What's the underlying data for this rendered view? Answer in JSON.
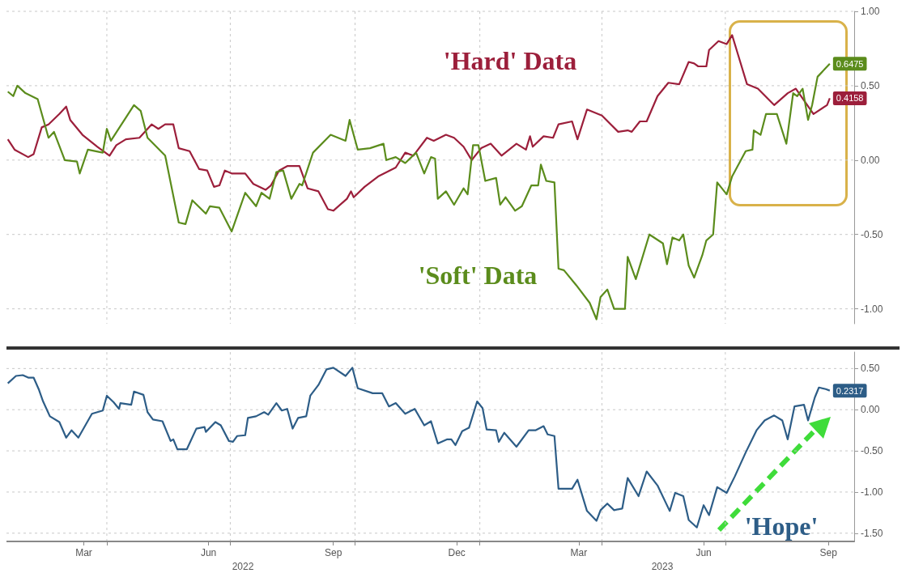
{
  "chart_data": [
    {
      "type": "line",
      "xlim": [
        "2022-01-17",
        "2023-10-04"
      ],
      "ylim": [
        -1.1,
        1.0
      ],
      "xticks": [
        {
          "value": "2022-04-01",
          "label": null
        },
        {
          "value": "2022-07-01",
          "label": null
        },
        {
          "value": "2022-10-01",
          "label": null
        },
        {
          "value": "2023-01-01",
          "label": null
        },
        {
          "value": "2023-04-01",
          "label": null
        },
        {
          "value": "2023-07-01",
          "label": null
        }
      ],
      "yticks": [
        {
          "value": -1,
          "label": "-1.00"
        },
        {
          "value": -0.5,
          "label": "-0.50"
        },
        {
          "value": 0,
          "label": "0.00"
        },
        {
          "value": 0.5,
          "label": "0.50"
        },
        {
          "value": 1,
          "label": "1.00"
        }
      ],
      "tick_labels": "y",
      "grid": true,
      "legend": false,
      "series": [
        {
          "name": "'Hard' Data",
          "color": "#9c1f3b",
          "x": [
            "2022-01-18",
            "2022-01-23",
            "2022-02-02",
            "2022-02-06",
            "2022-02-12",
            "2022-02-17",
            "2022-02-25",
            "2022-03-02",
            "2022-03-05",
            "2022-03-14",
            "2022-03-25",
            "2022-04-03",
            "2022-04-08",
            "2022-04-15",
            "2022-04-25",
            "2022-05-04",
            "2022-05-09",
            "2022-05-14",
            "2022-05-20",
            "2022-05-24",
            "2022-06-01",
            "2022-06-08",
            "2022-06-14",
            "2022-06-19",
            "2022-06-23",
            "2022-06-27",
            "2022-07-02",
            "2022-07-12",
            "2022-07-18",
            "2022-07-27",
            "2022-07-31",
            "2022-08-06",
            "2022-08-12",
            "2022-08-21",
            "2022-08-27",
            "2022-09-04",
            "2022-09-11",
            "2022-09-15",
            "2022-09-25",
            "2022-09-28",
            "2022-09-30",
            "2022-10-08",
            "2022-10-18",
            "2022-10-31",
            "2022-11-07",
            "2022-11-13",
            "2022-11-23",
            "2022-11-28",
            "2022-12-07",
            "2022-12-13",
            "2022-12-20",
            "2022-12-26",
            "2023-01-02",
            "2023-01-09",
            "2023-01-17",
            "2023-01-28",
            "2023-02-04",
            "2023-02-07",
            "2023-02-09",
            "2023-02-17",
            "2023-02-24",
            "2023-02-28",
            "2023-03-10",
            "2023-03-14",
            "2023-03-21",
            "2023-04-01",
            "2023-04-13",
            "2023-04-20",
            "2023-04-23",
            "2023-04-29",
            "2023-05-04",
            "2023-05-12",
            "2023-05-20",
            "2023-05-28",
            "2023-06-04",
            "2023-06-08",
            "2023-06-11",
            "2023-06-17",
            "2023-06-19",
            "2023-06-26",
            "2023-07-02",
            "2023-07-06",
            "2023-07-10",
            "2023-07-17",
            "2023-07-25",
            "2023-08-06",
            "2023-08-16",
            "2023-08-22",
            "2023-09-04",
            "2023-09-14",
            "2023-09-16"
          ],
          "values": [
            0.14,
            0.07,
            0.02,
            0.04,
            0.22,
            0.24,
            0.31,
            0.36,
            0.27,
            0.17,
            0.09,
            0.03,
            0.1,
            0.14,
            0.15,
            0.24,
            0.21,
            0.24,
            0.24,
            0.08,
            0.06,
            -0.06,
            -0.07,
            -0.18,
            -0.17,
            -0.07,
            -0.09,
            -0.09,
            -0.16,
            -0.2,
            -0.17,
            -0.07,
            -0.04,
            -0.04,
            -0.19,
            -0.21,
            -0.33,
            -0.34,
            -0.26,
            -0.21,
            -0.25,
            -0.18,
            -0.11,
            -0.05,
            0.05,
            0.03,
            0.15,
            0.13,
            0.17,
            0.15,
            0.09,
            0.0,
            0.08,
            0.11,
            0.03,
            0.11,
            0.07,
            0.16,
            0.09,
            0.16,
            0.15,
            0.24,
            0.26,
            0.14,
            0.34,
            0.3,
            0.19,
            0.2,
            0.19,
            0.26,
            0.26,
            0.43,
            0.52,
            0.51,
            0.66,
            0.65,
            0.63,
            0.63,
            0.74,
            0.8,
            0.78,
            0.84,
            0.72,
            0.51,
            0.48,
            0.37,
            0.45,
            0.48,
            0.31,
            0.37,
            0.4158
          ],
          "value_labels": [
            null,
            null,
            null,
            null,
            null,
            null,
            null,
            null,
            null,
            null,
            null,
            null,
            null,
            null,
            null,
            null,
            null,
            null,
            null,
            null,
            null,
            null,
            null,
            null,
            null,
            null,
            null,
            null,
            null,
            null,
            null,
            null,
            null,
            null,
            null,
            null,
            null,
            null,
            null,
            null,
            null,
            null,
            null,
            null,
            null,
            null,
            null,
            null,
            null,
            null,
            null,
            null,
            null,
            null,
            null,
            null,
            null,
            null,
            null,
            null,
            null,
            null,
            null,
            null,
            null,
            null,
            null,
            null,
            null,
            null,
            null,
            null,
            null,
            null,
            null,
            null,
            null,
            null,
            null,
            null,
            null,
            null,
            null,
            null,
            null,
            null,
            null,
            null,
            null,
            null,
            "0.4158"
          ]
        },
        {
          "name": "'Soft' Data",
          "color": "#5b8c1c",
          "x": [
            "2022-01-18",
            "2022-01-22",
            "2022-01-25",
            "2022-01-31",
            "2022-02-09",
            "2022-02-17",
            "2022-02-21",
            "2022-03-01",
            "2022-03-10",
            "2022-03-12",
            "2022-03-18",
            "2022-03-29",
            "2022-04-01",
            "2022-04-04",
            "2022-04-21",
            "2022-04-26",
            "2022-05-01",
            "2022-05-14",
            "2022-05-24",
            "2022-05-29",
            "2022-06-03",
            "2022-06-13",
            "2022-06-16",
            "2022-06-23",
            "2022-07-02",
            "2022-07-12",
            "2022-07-20",
            "2022-07-24",
            "2022-07-30",
            "2022-08-04",
            "2022-08-09",
            "2022-08-15",
            "2022-08-21",
            "2022-08-23",
            "2022-08-31",
            "2022-09-13",
            "2022-09-24",
            "2022-09-27",
            "2022-10-03",
            "2022-10-12",
            "2022-10-22",
            "2022-10-24",
            "2022-10-31",
            "2022-11-07",
            "2022-11-15",
            "2022-11-21",
            "2022-11-26",
            "2022-11-29",
            "2022-12-01",
            "2022-12-07",
            "2022-12-13",
            "2022-12-20",
            "2022-12-23",
            "2022-12-27",
            "2022-12-31",
            "2023-01-05",
            "2023-01-13",
            "2023-01-16",
            "2023-01-20",
            "2023-01-27",
            "2023-02-01",
            "2023-02-08",
            "2023-02-13",
            "2023-02-15",
            "2023-02-19",
            "2023-02-25",
            "2023-02-28",
            "2023-03-04",
            "2023-03-13",
            "2023-03-23",
            "2023-03-28",
            "2023-03-31",
            "2023-04-05",
            "2023-04-10",
            "2023-04-18",
            "2023-04-20",
            "2023-04-26",
            "2023-05-06",
            "2023-05-16",
            "2023-05-19",
            "2023-05-23",
            "2023-05-28",
            "2023-05-31",
            "2023-06-04",
            "2023-06-08",
            "2023-06-14",
            "2023-06-17",
            "2023-06-22",
            "2023-06-25",
            "2023-07-02",
            "2023-07-06",
            "2023-07-16",
            "2023-07-21",
            "2023-07-22",
            "2023-07-27",
            "2023-07-31",
            "2023-08-08",
            "2023-08-15",
            "2023-08-20",
            "2023-08-23",
            "2023-08-27",
            "2023-08-31",
            "2023-09-03",
            "2023-09-07",
            "2023-09-16"
          ],
          "values": [
            0.46,
            0.43,
            0.5,
            0.45,
            0.41,
            0.15,
            0.19,
            0.0,
            -0.01,
            -0.09,
            0.07,
            0.05,
            0.21,
            0.13,
            0.37,
            0.33,
            0.15,
            0.03,
            -0.42,
            -0.43,
            -0.27,
            -0.36,
            -0.31,
            -0.32,
            -0.48,
            -0.22,
            -0.31,
            -0.22,
            -0.26,
            -0.08,
            -0.07,
            -0.26,
            -0.16,
            -0.17,
            0.05,
            0.17,
            0.13,
            0.27,
            0.07,
            0.08,
            0.11,
            0.0,
            0.02,
            -0.02,
            0.05,
            -0.09,
            0.02,
            0.01,
            -0.26,
            -0.21,
            -0.3,
            -0.19,
            -0.23,
            0.1,
            0.1,
            -0.14,
            -0.12,
            -0.3,
            -0.25,
            -0.34,
            -0.31,
            -0.17,
            -0.17,
            -0.03,
            -0.14,
            -0.15,
            -0.73,
            -0.74,
            -0.84,
            -0.96,
            -1.07,
            -0.92,
            -0.87,
            -1.0,
            -1.0,
            -0.65,
            -0.8,
            -0.5,
            -0.56,
            -0.7,
            -0.52,
            -0.54,
            -0.5,
            -0.71,
            -0.79,
            -0.64,
            -0.54,
            -0.5,
            -0.15,
            -0.23,
            -0.11,
            0.06,
            0.07,
            0.2,
            0.17,
            0.31,
            0.31,
            0.11,
            0.45,
            0.43,
            0.48,
            0.27,
            0.37,
            0.56,
            0.6475
          ],
          "value_labels": [
            null,
            null,
            null,
            null,
            null,
            null,
            null,
            null,
            null,
            null,
            null,
            null,
            null,
            null,
            null,
            null,
            null,
            null,
            null,
            null,
            null,
            null,
            null,
            null,
            null,
            null,
            null,
            null,
            null,
            null,
            null,
            null,
            null,
            null,
            null,
            null,
            null,
            null,
            null,
            null,
            null,
            null,
            null,
            null,
            null,
            null,
            null,
            null,
            null,
            null,
            null,
            null,
            null,
            null,
            null,
            null,
            null,
            null,
            null,
            null,
            null,
            null,
            null,
            null,
            null,
            null,
            null,
            null,
            null,
            null,
            null,
            null,
            null,
            null,
            null,
            null,
            null,
            null,
            null,
            null,
            null,
            null,
            null,
            null,
            null,
            null,
            null,
            null,
            null,
            null,
            null,
            null,
            null,
            null,
            null,
            null,
            null,
            null,
            null,
            null,
            null,
            null,
            null,
            null,
            "0.6475"
          ]
        }
      ]
    },
    {
      "type": "line",
      "xlim": [
        "2022-01-17",
        "2023-10-04"
      ],
      "ylim": [
        -1.6,
        0.7
      ],
      "xticks": [
        {
          "value": "2022-03-15",
          "label": "Mar"
        },
        {
          "value": "2022-04-01",
          "label": null
        },
        {
          "value": "2022-06-15",
          "label": "Jun"
        },
        {
          "value": "2022-07-01",
          "label": null
        },
        {
          "value": "2022-09-15",
          "label": "Sep"
        },
        {
          "value": "2022-10-01",
          "label": null
        },
        {
          "value": "2022-12-15",
          "label": "Dec"
        },
        {
          "value": "2023-01-01",
          "label": null
        },
        {
          "value": "2023-03-15",
          "label": "Mar"
        },
        {
          "value": "2023-04-01",
          "label": null
        },
        {
          "value": "2023-06-15",
          "label": "Jun"
        },
        {
          "value": "2023-07-01",
          "label": null
        },
        {
          "value": "2023-09-15",
          "label": "Sep"
        }
      ],
      "yticks": [
        {
          "value": -1.5,
          "label": "-1.50"
        },
        {
          "value": -1,
          "label": "-1.00"
        },
        {
          "value": -0.5,
          "label": "-0.50"
        },
        {
          "value": 0,
          "label": "0.00"
        },
        {
          "value": 0.5,
          "label": "0.50"
        }
      ],
      "grid": true,
      "legend": false,
      "annotations": [
        "2022",
        "2023"
      ],
      "series": [
        {
          "name": "'Hope'",
          "color": "#2d5d87",
          "x": [
            "2022-01-18",
            "2022-01-24",
            "2022-01-29",
            "2022-02-02",
            "2022-02-06",
            "2022-02-10",
            "2022-02-13",
            "2022-02-18",
            "2022-02-25",
            "2022-03-02",
            "2022-03-06",
            "2022-03-11",
            "2022-03-21",
            "2022-03-29",
            "2022-04-01",
            "2022-04-06",
            "2022-04-10",
            "2022-04-11",
            "2022-04-19",
            "2022-04-21",
            "2022-04-28",
            "2022-05-01",
            "2022-05-05",
            "2022-05-12",
            "2022-05-18",
            "2022-05-20",
            "2022-05-23",
            "2022-05-30",
            "2022-06-06",
            "2022-06-12",
            "2022-06-13",
            "2022-06-20",
            "2022-06-24",
            "2022-06-30",
            "2022-07-03",
            "2022-07-06",
            "2022-07-12",
            "2022-07-14",
            "2022-07-20",
            "2022-07-26",
            "2022-07-29",
            "2022-08-04",
            "2022-08-08",
            "2022-08-12",
            "2022-08-16",
            "2022-08-20",
            "2022-08-26",
            "2022-08-29",
            "2022-09-04",
            "2022-09-10",
            "2022-09-15",
            "2022-09-24",
            "2022-09-29",
            "2022-10-03",
            "2022-10-14",
            "2022-10-21",
            "2022-10-26",
            "2022-10-31",
            "2022-11-07",
            "2022-11-14",
            "2022-11-21",
            "2022-11-26",
            "2022-12-01",
            "2022-12-08",
            "2022-12-11",
            "2022-12-14",
            "2022-12-19",
            "2022-12-24",
            "2022-12-30",
            "2023-01-03",
            "2023-01-06",
            "2023-01-13",
            "2023-01-15",
            "2023-01-19",
            "2023-01-28",
            "2023-02-06",
            "2023-02-11",
            "2023-02-17",
            "2023-02-20",
            "2023-02-25",
            "2023-02-28",
            "2023-03-10",
            "2023-03-14",
            "2023-03-21",
            "2023-03-28",
            "2023-03-31",
            "2023-04-05",
            "2023-04-10",
            "2023-04-16",
            "2023-04-20",
            "2023-04-28",
            "2023-05-04",
            "2023-05-12",
            "2023-05-21",
            "2023-05-25",
            "2023-05-31",
            "2023-06-04",
            "2023-06-10",
            "2023-06-15",
            "2023-06-19",
            "2023-06-25",
            "2023-07-02",
            "2023-07-08",
            "2023-07-16",
            "2023-07-24",
            "2023-07-30",
            "2023-08-06",
            "2023-08-12",
            "2023-08-16",
            "2023-08-21",
            "2023-08-28",
            "2023-08-31",
            "2023-09-05",
            "2023-09-08",
            "2023-09-13",
            "2023-09-16"
          ],
          "values": [
            0.32,
            0.41,
            0.42,
            0.39,
            0.39,
            0.24,
            0.1,
            -0.08,
            -0.15,
            -0.34,
            -0.25,
            -0.34,
            -0.05,
            -0.01,
            0.17,
            0.09,
            0.01,
            0.08,
            0.06,
            0.22,
            0.18,
            -0.03,
            -0.12,
            -0.14,
            -0.38,
            -0.36,
            -0.48,
            -0.48,
            -0.23,
            -0.21,
            -0.27,
            -0.15,
            -0.19,
            -0.38,
            -0.39,
            -0.32,
            -0.31,
            -0.1,
            -0.08,
            -0.03,
            -0.06,
            0.08,
            -0.01,
            0.01,
            -0.23,
            -0.1,
            -0.08,
            0.17,
            0.3,
            0.49,
            0.51,
            0.41,
            0.51,
            0.26,
            0.2,
            0.2,
            0.04,
            0.08,
            -0.05,
            0.01,
            -0.19,
            -0.14,
            -0.41,
            -0.36,
            -0.36,
            -0.43,
            -0.26,
            -0.22,
            0.1,
            0.02,
            -0.24,
            -0.25,
            -0.39,
            -0.28,
            -0.45,
            -0.25,
            -0.25,
            -0.2,
            -0.3,
            -0.32,
            -0.96,
            -0.96,
            -0.85,
            -1.23,
            -1.35,
            -1.22,
            -1.14,
            -1.22,
            -1.2,
            -0.83,
            -1.05,
            -0.75,
            -0.92,
            -1.23,
            -1.01,
            -1.05,
            -1.34,
            -1.43,
            -1.16,
            -1.28,
            -0.94,
            -1.01,
            -0.81,
            -0.52,
            -0.25,
            -0.13,
            -0.07,
            -0.13,
            -0.36,
            0.04,
            0.06,
            -0.13,
            0.15,
            0.27,
            0.25,
            0.2317
          ],
          "value_labels": [
            null,
            null,
            null,
            null,
            null,
            null,
            null,
            null,
            null,
            null,
            null,
            null,
            null,
            null,
            null,
            null,
            null,
            null,
            null,
            null,
            null,
            null,
            null,
            null,
            null,
            null,
            null,
            null,
            null,
            null,
            null,
            null,
            null,
            null,
            null,
            null,
            null,
            null,
            null,
            null,
            null,
            null,
            null,
            null,
            null,
            null,
            null,
            null,
            null,
            null,
            null,
            null,
            null,
            null,
            null,
            null,
            null,
            null,
            null,
            null,
            null,
            null,
            null,
            null,
            null,
            null,
            null,
            null,
            null,
            null,
            null,
            null,
            null,
            null,
            null,
            null,
            null,
            null,
            null,
            null,
            null,
            null,
            null,
            null,
            null,
            null,
            null,
            null,
            null,
            null,
            null,
            null,
            null,
            null,
            null,
            null,
            null,
            null,
            null,
            null,
            null,
            null,
            null,
            null,
            null,
            null,
            null,
            null,
            null,
            null,
            null,
            null,
            null,
            null,
            null,
            "0.2317"
          ]
        }
      ]
    }
  ]
}
